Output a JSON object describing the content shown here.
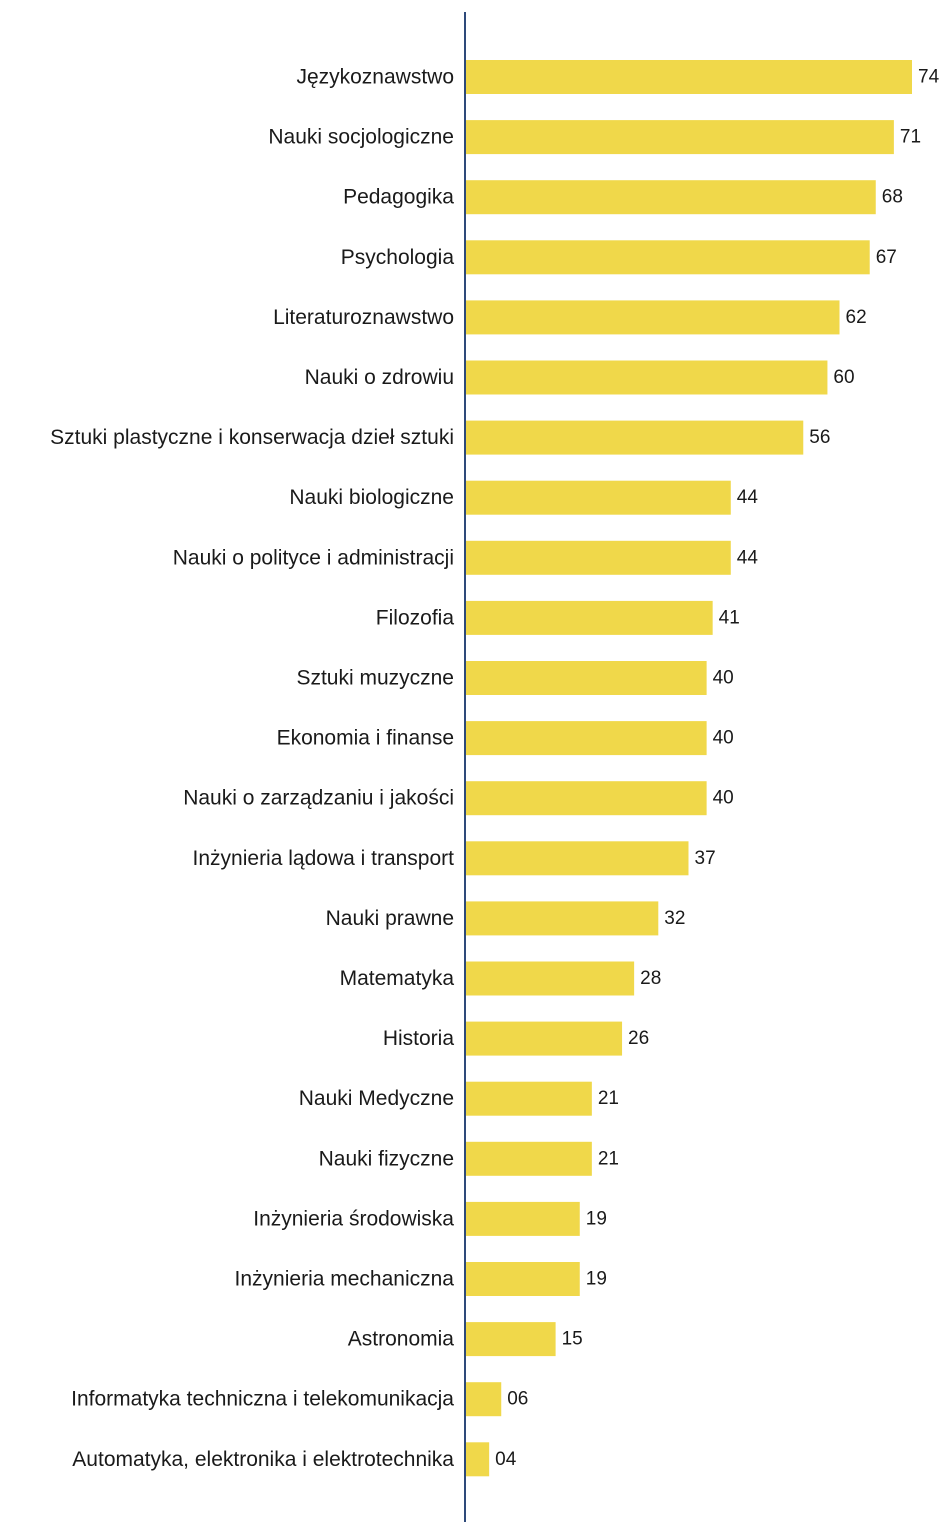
{
  "chart_data": {
    "type": "bar",
    "orientation": "horizontal",
    "title": "",
    "xlabel": "",
    "ylabel": "",
    "grid": false,
    "legend": "none",
    "colors": {
      "bar": "#f0d84a",
      "axis": "#2e4a7a",
      "text": "#1a1a1a"
    },
    "xlim": [
      0,
      74
    ],
    "categories": [
      "Językoznawstwo",
      "Nauki socjologiczne",
      "Pedagogika",
      "Psychologia",
      "Literaturoznawstwo",
      "Nauki o zdrowiu",
      "Sztuki plastyczne i konserwacja dzieł sztuki",
      "Nauki biologiczne",
      "Nauki o polityce i administracji",
      "Filozofia",
      "Sztuki muzyczne",
      "Ekonomia i finanse",
      "Nauki o zarządzaniu i jakości",
      "Inżynieria lądowa i transport",
      "Nauki prawne",
      "Matematyka",
      "Historia",
      "Nauki Medyczne",
      "Nauki fizyczne",
      "Inżynieria środowiska",
      "Inżynieria mechaniczna",
      "Astronomia",
      "Informatyka techniczna i telekomunikacja",
      "Automatyka, elektronika i elektrotechnika"
    ],
    "values": [
      74,
      71,
      68,
      67,
      62,
      60,
      56,
      44,
      44,
      41,
      40,
      40,
      40,
      37,
      32,
      28,
      26,
      21,
      21,
      19,
      19,
      15,
      6,
      4
    ],
    "value_labels": [
      "74",
      "71",
      "68",
      "67",
      "62",
      "60",
      "56",
      "44",
      "44",
      "41",
      "40",
      "40",
      "40",
      "37",
      "32",
      "28",
      "26",
      "21",
      "21",
      "19",
      "19",
      "15",
      "06",
      "04"
    ]
  }
}
